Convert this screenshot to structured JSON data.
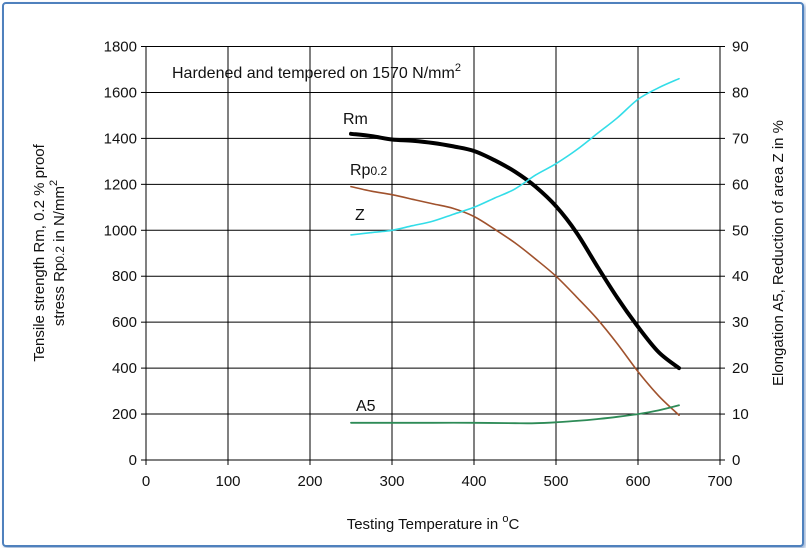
{
  "chart_data": {
    "type": "line",
    "title": "Hardened and tempered on 1570 N/mm",
    "title_superscript": "2",
    "xlabel": "Testing Temperature in ",
    "xlabel_superscript": "o",
    "xlabel_unit": "C",
    "ylabel_left_line1": "Tensile strength Rm, 0.2 % proof",
    "ylabel_left_line2_a": "stress Rp",
    "ylabel_left_line2_sub": "0.2",
    "ylabel_left_line2_b": " in N/mm",
    "ylabel_left_line2_sup": "2",
    "ylabel_right": "Elongation A5, Reduction of area Z in %",
    "xlim": [
      0,
      700
    ],
    "ylim_left": [
      0,
      1800
    ],
    "ylim_right": [
      0,
      90
    ],
    "x_ticks": [
      "0",
      "100",
      "200",
      "300",
      "400",
      "500",
      "600",
      "700"
    ],
    "y_left_ticks": [
      "0",
      "200",
      "400",
      "600",
      "800",
      "1000",
      "1200",
      "1400",
      "1600",
      "1800"
    ],
    "y_right_ticks": [
      "0",
      "10",
      "20",
      "30",
      "40",
      "50",
      "60",
      "70",
      "80",
      "90"
    ],
    "grid": true,
    "series": [
      {
        "name": "Rm",
        "axis": "left",
        "color": "#000000",
        "x": [
          250,
          275,
          300,
          325,
          350,
          375,
          400,
          425,
          450,
          475,
          500,
          525,
          550,
          575,
          600,
          625,
          650
        ],
        "y": [
          1420,
          1410,
          1395,
          1390,
          1380,
          1365,
          1345,
          1305,
          1255,
          1190,
          1105,
          990,
          845,
          705,
          580,
          470,
          400
        ]
      },
      {
        "name": "Rp",
        "name_sub": "0.2",
        "axis": "left",
        "color": "#a0522d",
        "x": [
          250,
          275,
          300,
          325,
          350,
          375,
          400,
          425,
          450,
          475,
          500,
          525,
          550,
          575,
          600,
          625,
          650
        ],
        "y": [
          1190,
          1170,
          1155,
          1135,
          1115,
          1095,
          1060,
          1005,
          945,
          875,
          800,
          710,
          615,
          505,
          385,
          280,
          195
        ]
      },
      {
        "name": "Z",
        "axis": "right",
        "color": "#33dde8",
        "x": [
          250,
          275,
          300,
          325,
          350,
          375,
          400,
          425,
          450,
          475,
          500,
          525,
          550,
          575,
          600,
          625,
          650
        ],
        "y": [
          49,
          49.5,
          50,
          51,
          52,
          53.5,
          55,
          57,
          59,
          62,
          64.5,
          67.5,
          71,
          74.5,
          78.5,
          81,
          83
        ]
      },
      {
        "name": "A5",
        "axis": "right",
        "color": "#2e8b57",
        "x": [
          250,
          300,
          350,
          400,
          450,
          475,
          500,
          525,
          550,
          575,
          600,
          625,
          650
        ],
        "y": [
          8.1,
          8.1,
          8.1,
          8.1,
          8.0,
          8.0,
          8.2,
          8.5,
          8.9,
          9.4,
          10.0,
          10.8,
          11.9
        ]
      }
    ]
  }
}
